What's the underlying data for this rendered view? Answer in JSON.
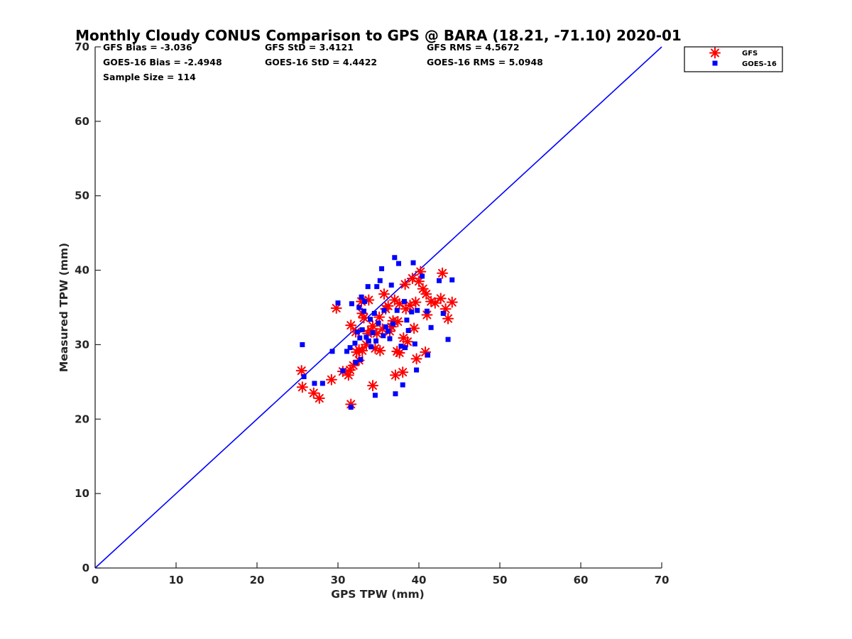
{
  "chart_data": {
    "type": "scatter",
    "title": "Monthly Cloudy CONUS Comparison to GPS @ BARA (18.21, -71.10) 2020-01",
    "xlabel": "GPS TPW (mm)",
    "ylabel": "Measured TPW (mm)",
    "xlim": [
      0,
      70
    ],
    "ylim": [
      0,
      70
    ],
    "xticks": [
      "0",
      "10",
      "20",
      "30",
      "40",
      "50",
      "60",
      "70"
    ],
    "yticks": [
      "0",
      "10",
      "20",
      "30",
      "40",
      "50",
      "60",
      "70"
    ],
    "grid": false,
    "legend_position": "top-right-outside",
    "stats": {
      "gfs_bias": "GFS Bias = -3.036",
      "gfs_std": "GFS StD = 3.4121",
      "gfs_rms": "GFS RMS = 4.5672",
      "goes_bias": "GOES-16 Bias = -2.4948",
      "goes_std": "GOES-16 StD = 4.4422",
      "goes_rms": "GOES-16 RMS = 5.0948",
      "sample_size": "Sample Size = 114"
    },
    "reference_line": {
      "name": "1:1 line",
      "x": [
        0,
        70
      ],
      "y": [
        0,
        70
      ],
      "color": "#0000ff"
    },
    "series": [
      {
        "name": "GFS",
        "marker": "asterisk",
        "color": "#ff0000",
        "points": [
          [
            25.5,
            26.5
          ],
          [
            25.6,
            24.3
          ],
          [
            27.0,
            23.5
          ],
          [
            27.7,
            22.8
          ],
          [
            29.2,
            25.3
          ],
          [
            29.8,
            34.9
          ],
          [
            30.6,
            26.4
          ],
          [
            31.3,
            25.9
          ],
          [
            31.5,
            26.6
          ],
          [
            31.6,
            22.0
          ],
          [
            31.6,
            32.6
          ],
          [
            31.9,
            27.2
          ],
          [
            32.2,
            31.7
          ],
          [
            32.3,
            29.0
          ],
          [
            32.6,
            27.9
          ],
          [
            32.6,
            29.3
          ],
          [
            32.9,
            35.8
          ],
          [
            33.0,
            34.2
          ],
          [
            33.0,
            29.2
          ],
          [
            33.2,
            33.6
          ],
          [
            33.5,
            30.0
          ],
          [
            33.7,
            31.5
          ],
          [
            33.8,
            36.0
          ],
          [
            34.1,
            31.9
          ],
          [
            34.3,
            32.5
          ],
          [
            34.3,
            24.5
          ],
          [
            34.6,
            29.5
          ],
          [
            34.8,
            31.5
          ],
          [
            35.1,
            33.7
          ],
          [
            35.2,
            29.2
          ],
          [
            35.5,
            32.1
          ],
          [
            35.7,
            36.8
          ],
          [
            35.9,
            34.8
          ],
          [
            36.2,
            35.2
          ],
          [
            36.4,
            31.8
          ],
          [
            36.6,
            32.4
          ],
          [
            36.8,
            33.2
          ],
          [
            37.0,
            36.0
          ],
          [
            37.1,
            25.9
          ],
          [
            37.3,
            29.1
          ],
          [
            37.4,
            33.1
          ],
          [
            37.6,
            35.5
          ],
          [
            37.6,
            28.9
          ],
          [
            38.0,
            26.3
          ],
          [
            38.1,
            30.9
          ],
          [
            38.3,
            38.1
          ],
          [
            38.4,
            34.8
          ],
          [
            38.6,
            30.4
          ],
          [
            38.9,
            35.3
          ],
          [
            39.2,
            38.9
          ],
          [
            39.4,
            32.2
          ],
          [
            39.6,
            35.7
          ],
          [
            39.7,
            28.1
          ],
          [
            40.0,
            38.5
          ],
          [
            40.2,
            39.8
          ],
          [
            40.5,
            37.5
          ],
          [
            40.8,
            29.0
          ],
          [
            40.9,
            36.8
          ],
          [
            41.0,
            34.0
          ],
          [
            41.5,
            35.8
          ],
          [
            42.0,
            35.6
          ],
          [
            42.7,
            36.2
          ],
          [
            42.9,
            39.6
          ],
          [
            43.3,
            34.8
          ],
          [
            43.6,
            33.5
          ],
          [
            44.1,
            35.7
          ]
        ]
      },
      {
        "name": "GOES-16",
        "marker": "square",
        "color": "#0000ff",
        "points": [
          [
            25.6,
            30.0
          ],
          [
            25.8,
            25.7
          ],
          [
            27.1,
            24.8
          ],
          [
            28.1,
            24.8
          ],
          [
            29.3,
            29.1
          ],
          [
            30.0,
            35.6
          ],
          [
            30.6,
            26.5
          ],
          [
            31.1,
            29.1
          ],
          [
            31.5,
            29.6
          ],
          [
            31.6,
            21.6
          ],
          [
            31.7,
            35.5
          ],
          [
            32.1,
            30.2
          ],
          [
            32.2,
            27.6
          ],
          [
            32.4,
            31.7
          ],
          [
            32.6,
            35.0
          ],
          [
            32.7,
            30.9
          ],
          [
            32.8,
            28.0
          ],
          [
            32.9,
            36.4
          ],
          [
            33.0,
            32.0
          ],
          [
            33.2,
            34.5
          ],
          [
            33.3,
            35.8
          ],
          [
            33.5,
            31.0
          ],
          [
            33.7,
            37.8
          ],
          [
            33.8,
            30.5
          ],
          [
            34.0,
            33.4
          ],
          [
            34.1,
            29.7
          ],
          [
            34.3,
            31.6
          ],
          [
            34.5,
            34.2
          ],
          [
            34.6,
            23.2
          ],
          [
            34.7,
            30.5
          ],
          [
            34.8,
            37.8
          ],
          [
            35.0,
            32.9
          ],
          [
            35.2,
            38.6
          ],
          [
            35.4,
            40.2
          ],
          [
            35.6,
            31.2
          ],
          [
            35.7,
            34.6
          ],
          [
            35.9,
            32.4
          ],
          [
            36.2,
            31.8
          ],
          [
            36.4,
            30.8
          ],
          [
            36.6,
            38.0
          ],
          [
            36.8,
            32.8
          ],
          [
            37.0,
            41.7
          ],
          [
            37.1,
            23.4
          ],
          [
            37.3,
            34.6
          ],
          [
            37.5,
            40.9
          ],
          [
            37.8,
            29.8
          ],
          [
            38.0,
            24.6
          ],
          [
            38.2,
            35.8
          ],
          [
            38.3,
            29.6
          ],
          [
            38.5,
            33.3
          ],
          [
            38.7,
            31.9
          ],
          [
            39.1,
            34.4
          ],
          [
            39.3,
            41.0
          ],
          [
            39.5,
            30.1
          ],
          [
            39.7,
            26.6
          ],
          [
            39.8,
            34.6
          ],
          [
            40.4,
            39.2
          ],
          [
            41.0,
            34.5
          ],
          [
            41.1,
            28.6
          ],
          [
            41.5,
            32.3
          ],
          [
            42.5,
            38.6
          ],
          [
            43.0,
            34.2
          ],
          [
            43.6,
            30.7
          ],
          [
            44.1,
            38.7
          ]
        ]
      }
    ]
  }
}
